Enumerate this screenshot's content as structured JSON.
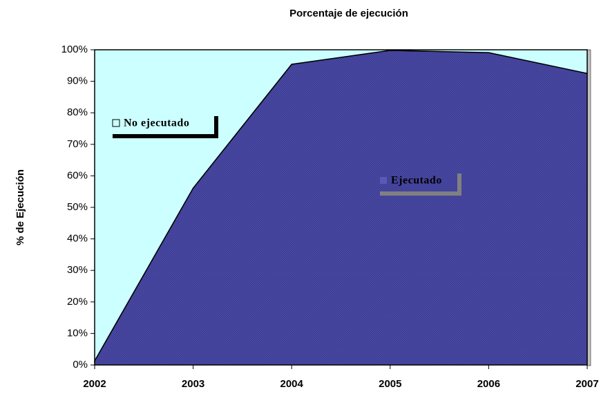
{
  "chart_data": {
    "type": "stacked_area",
    "title": "Porcentaje de ejecución",
    "ylabel": "% de Ejecución",
    "categories": [
      "2002",
      "2003",
      "2004",
      "2005",
      "2006",
      "2007"
    ],
    "series": [
      {
        "name": "Ejecutado",
        "color": "#3c3c96",
        "values": [
          1.3,
          56.1,
          95.4,
          99.8,
          99.1,
          92.5
        ]
      },
      {
        "name": "No ejecutado",
        "color": "#ccffff",
        "values": [
          98.7,
          43.9,
          4.6,
          0.2,
          0.9,
          7.5
        ]
      }
    ],
    "ylim": [
      0,
      100
    ],
    "yticks": [
      {
        "value": 0,
        "label": "0%"
      },
      {
        "value": 10,
        "label": "10%"
      },
      {
        "value": 20,
        "label": "20%"
      },
      {
        "value": 30,
        "label": "30%"
      },
      {
        "value": 40,
        "label": "40%"
      },
      {
        "value": 50,
        "label": "50%"
      },
      {
        "value": 60,
        "label": "60%"
      },
      {
        "value": 70,
        "label": "70%"
      },
      {
        "value": 80,
        "label": "80%"
      },
      {
        "value": 90,
        "label": "90%"
      },
      {
        "value": 100,
        "label": "100%"
      }
    ]
  }
}
